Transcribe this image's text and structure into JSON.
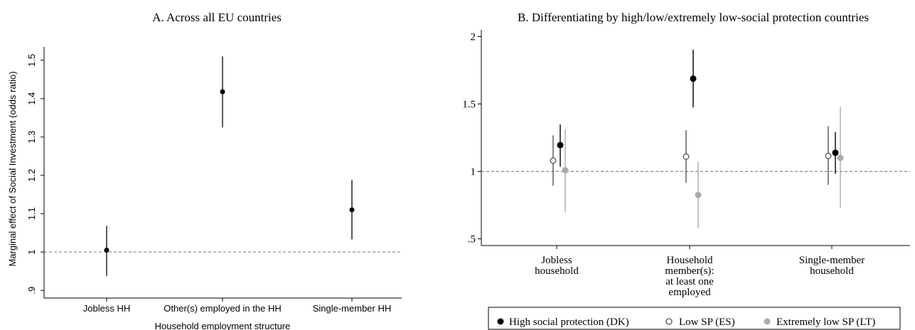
{
  "colors": {
    "dk": "#000000",
    "es": "#555555",
    "lt": "#aaaaaa",
    "ref": "#777777"
  },
  "chart_data": [
    {
      "type": "scatter",
      "title": "A. Across all EU countries",
      "xlabel": "Household employment structure",
      "ylabel": "Marginal effect of Social Investment (odds ratio)",
      "categories": [
        "Jobless HH",
        "Other(s) employed in the HH",
        "Single-member HH"
      ],
      "ylim": [
        0.88,
        1.535
      ],
      "yticks": [
        0.9,
        1,
        1.1,
        1.2,
        1.3,
        1.4,
        1.5
      ],
      "ytick_labels": [
        ".9",
        "1",
        "1.1",
        "1.2",
        "1.3",
        "1.4",
        "1.5"
      ],
      "reference_line": 1,
      "grid": false,
      "series": [
        {
          "values": [
            1.005,
            1.418,
            1.11
          ],
          "ci_low": [
            0.938,
            1.325,
            1.033
          ],
          "ci_high": [
            1.068,
            1.51,
            1.188
          ]
        }
      ]
    },
    {
      "type": "scatter",
      "title": "B. Differentiating by high/low/extremely low-social protection countries",
      "categories": [
        "Jobless household",
        "Household member(s): at least one employed",
        "Single-member household"
      ],
      "category_lines": [
        [
          "Jobless",
          "household"
        ],
        [
          "Household",
          "member(s):",
          "at least one",
          "employed"
        ],
        [
          "Single-member",
          "household"
        ]
      ],
      "ylim": [
        0.45,
        2.05
      ],
      "yticks": [
        0.5,
        1,
        1.5,
        2
      ],
      "ytick_labels": [
        ".5",
        "1",
        "1.5",
        "2"
      ],
      "reference_line": 1,
      "grid": false,
      "legend_position": "bottom",
      "series": [
        {
          "name": "High social protection (DK)",
          "marker": "filled",
          "values": [
            1.195,
            1.688,
            1.138
          ],
          "ci_low": [
            1.035,
            1.475,
            0.982
          ],
          "ci_high": [
            1.348,
            1.902,
            1.292
          ]
        },
        {
          "name": "Low SP (ES)",
          "marker": "hollow",
          "values": [
            1.08,
            1.11,
            1.115
          ],
          "ci_low": [
            0.893,
            0.915,
            0.9
          ],
          "ci_high": [
            1.268,
            1.305,
            1.335
          ]
        },
        {
          "name": "Extremely low SP (LT)",
          "marker": "filled",
          "values": [
            1.008,
            0.825,
            1.1
          ],
          "ci_low": [
            0.7,
            0.578,
            0.73
          ],
          "ci_high": [
            1.315,
            1.072,
            1.478
          ]
        }
      ]
    }
  ]
}
